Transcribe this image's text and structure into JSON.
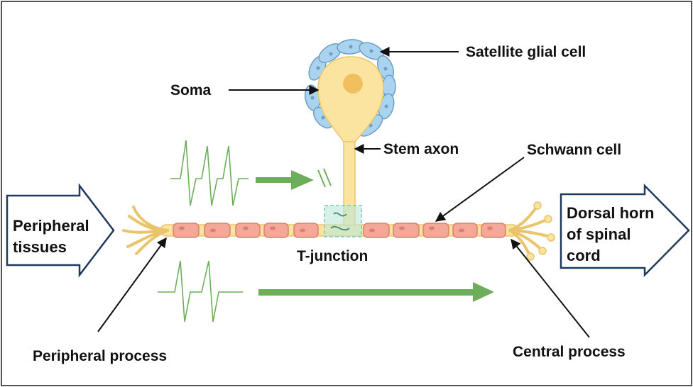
{
  "labels": {
    "satellite_glial_cell": "Satellite glial cell",
    "soma": "Soma",
    "stem_axon": "Stem axon",
    "schwann_cell": "Schwann cell",
    "t_junction": "T-junction",
    "peripheral_process": "Peripheral process",
    "central_process": "Central process"
  },
  "left_arrow": {
    "line1": "Peripheral",
    "line2": "tissues"
  },
  "right_arrow": {
    "line1": "Dorsal horn",
    "line2": "of spinal",
    "line3": "cord"
  },
  "colors": {
    "border": "#555555",
    "neuron_fill": "#FBE3A0",
    "neuron_stroke": "#E9C46A",
    "nucleus": "#F0C060",
    "glia_fill": "#A9D3EE",
    "glia_stroke": "#6E9DC4",
    "schwann_fill": "#F3A898",
    "schwann_stroke": "#D9806E",
    "signal_green": "#6DAE5B",
    "junction_box": "#7FC9B0",
    "outline_arrow": "#1F3A5F"
  },
  "icons": [
    "action-potential-trace",
    "direction-arrow",
    "conduction-block-marks"
  ]
}
